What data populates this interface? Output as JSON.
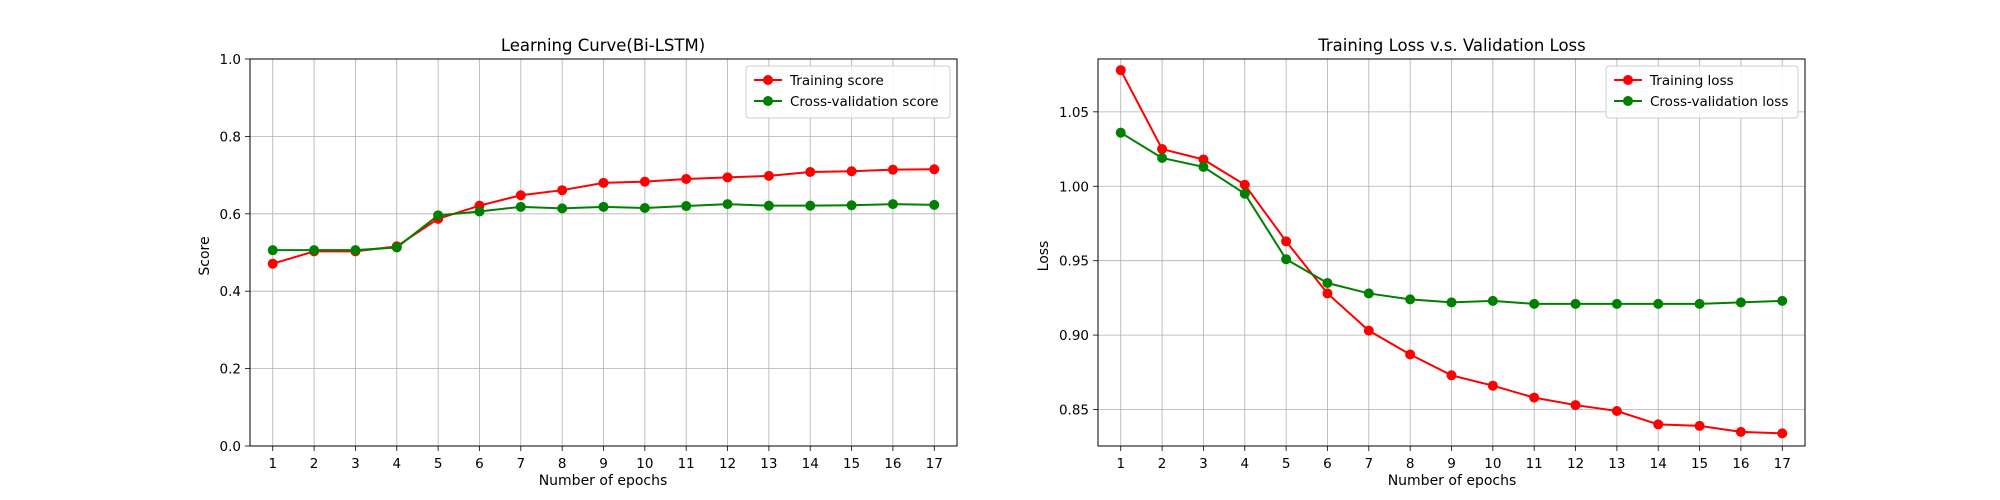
{
  "chart_data": [
    {
      "type": "line",
      "title": "Learning Curve(Bi-LSTM)",
      "xlabel": "Number of epochs",
      "ylabel": "Score",
      "x": [
        1,
        2,
        3,
        4,
        5,
        6,
        7,
        8,
        9,
        10,
        11,
        12,
        13,
        14,
        15,
        16,
        17
      ],
      "xlim": [
        0.45,
        17.55
      ],
      "ylim": [
        0.0,
        1.0
      ],
      "yticks": [
        "0.0",
        "0.2",
        "0.4",
        "0.6",
        "0.8",
        "1.0"
      ],
      "grid": true,
      "legend_position": "top-right",
      "series": [
        {
          "name": "Training score",
          "color": "#ff0000",
          "values": [
            0.471,
            0.503,
            0.503,
            0.516,
            0.587,
            0.621,
            0.648,
            0.661,
            0.68,
            0.683,
            0.69,
            0.694,
            0.698,
            0.708,
            0.71,
            0.714,
            0.715
          ]
        },
        {
          "name": "Cross-validation score",
          "color": "#008000",
          "values": [
            0.506,
            0.506,
            0.506,
            0.513,
            0.596,
            0.606,
            0.618,
            0.614,
            0.618,
            0.615,
            0.62,
            0.625,
            0.621,
            0.621,
            0.622,
            0.625,
            0.623
          ]
        }
      ]
    },
    {
      "type": "line",
      "title": "Training Loss v.s. Validation Loss",
      "xlabel": "Number of epochs",
      "ylabel": "Loss",
      "x": [
        1,
        2,
        3,
        4,
        5,
        6,
        7,
        8,
        9,
        10,
        11,
        12,
        13,
        14,
        15,
        16,
        17
      ],
      "xlim": [
        0.45,
        17.55
      ],
      "ylim": [
        0.8255,
        1.0855
      ],
      "yticks": [
        "0.85",
        "0.90",
        "0.95",
        "1.00",
        "1.05"
      ],
      "grid": true,
      "legend_position": "top-right",
      "series": [
        {
          "name": "Training loss",
          "color": "#ff0000",
          "values": [
            1.078,
            1.025,
            1.018,
            1.001,
            0.963,
            0.928,
            0.903,
            0.887,
            0.873,
            0.866,
            0.858,
            0.853,
            0.849,
            0.84,
            0.839,
            0.835,
            0.834
          ]
        },
        {
          "name": "Cross-validation loss",
          "color": "#008000",
          "values": [
            1.036,
            1.019,
            1.013,
            0.995,
            0.951,
            0.935,
            0.928,
            0.924,
            0.922,
            0.923,
            0.921,
            0.921,
            0.921,
            0.921,
            0.921,
            0.922,
            0.923
          ]
        }
      ]
    }
  ]
}
